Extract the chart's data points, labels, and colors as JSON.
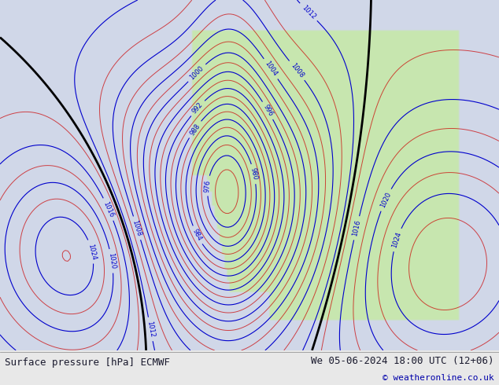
{
  "title_left": "Surface pressure [hPa] ECMWF",
  "title_right": "We 05-06-2024 18:00 UTC (12+06)",
  "copyright": "© weatheronline.co.uk",
  "bg_color": "#d0d8e8",
  "land_color": "#c8e6b0",
  "text_color_dark": "#1a1a2e",
  "blue_line_color": "#0000cc",
  "red_line_color": "#cc0000",
  "black_line_color": "#000000",
  "footer_bg": "#e8e8e8",
  "figsize": [
    6.34,
    4.9
  ],
  "dpi": 100
}
